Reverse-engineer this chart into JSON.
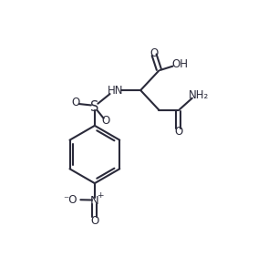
{
  "bg_color": "#ffffff",
  "line_color": "#2a2a3a",
  "line_width": 1.5,
  "font_size": 8.5,
  "figsize": [
    2.94,
    2.93
  ],
  "dpi": 100,
  "xlim": [
    0,
    10
  ],
  "ylim": [
    0,
    10
  ]
}
